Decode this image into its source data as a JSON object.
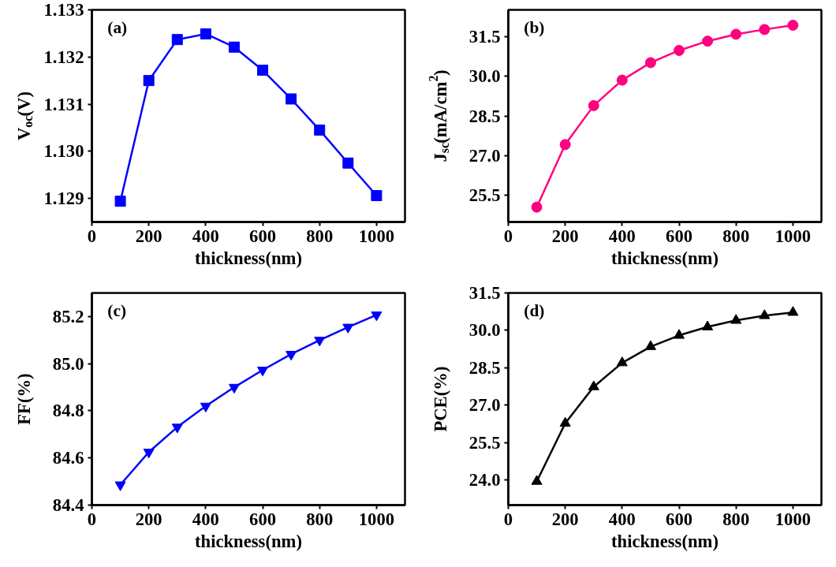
{
  "chart_data": [
    {
      "type": "line",
      "xlabel": "thickness(nm)",
      "ylabel": "V$_{oc}$(V)",
      "annotations": [
        "(a)"
      ],
      "marker": "square",
      "line_style": "solid",
      "grid": false,
      "x": [
        100,
        200,
        300,
        400,
        500,
        600,
        700,
        800,
        900,
        1000
      ],
      "series": [
        {
          "color": "#0000ff",
          "values": [
            1.12894,
            1.1315,
            1.13237,
            1.13249,
            1.13221,
            1.13172,
            1.13111,
            1.13045,
            1.12975,
            1.12906
          ]
        }
      ],
      "xlim": [
        0,
        1100
      ],
      "xticks": [
        0,
        200,
        400,
        600,
        800,
        1000
      ],
      "ylim": [
        1.1285,
        1.133
      ],
      "yticks": [
        {
          "value": 1.129,
          "label": "1.129"
        },
        {
          "value": 1.13,
          "label": "1.130"
        },
        {
          "value": 1.131,
          "label": "1.131"
        },
        {
          "value": 1.132,
          "label": "1.132"
        },
        {
          "value": 1.133,
          "label": "1.133"
        }
      ]
    },
    {
      "type": "line",
      "xlabel": "thickness(nm)",
      "ylabel": "J$_{sc}$(mA/cm$^{2}$)",
      "annotations": [
        "(b)"
      ],
      "marker": "circle",
      "line_style": "solid",
      "grid": false,
      "x": [
        100,
        200,
        300,
        400,
        500,
        600,
        700,
        800,
        900,
        1000
      ],
      "series": [
        {
          "color": "#ff0080",
          "values": [
            25.06,
            27.42,
            28.89,
            29.85,
            30.51,
            30.97,
            31.32,
            31.58,
            31.76,
            31.92
          ]
        }
      ],
      "xlim": [
        0,
        1100
      ],
      "xticks": [
        0,
        200,
        400,
        600,
        800,
        1000
      ],
      "ylim": [
        24.5,
        32.5
      ],
      "yticks": [
        {
          "value": 25.5,
          "label": "25.5"
        },
        {
          "value": 27,
          "label": "27.0"
        },
        {
          "value": 28.5,
          "label": "28.5"
        },
        {
          "value": 30,
          "label": "30.0"
        },
        {
          "value": 31.5,
          "label": "31.5"
        }
      ]
    },
    {
      "type": "line",
      "xlabel": "thickness(nm)",
      "ylabel": "FF(%)",
      "annotations": [
        "(c)"
      ],
      "marker": "triangle_down",
      "line_style": "solid",
      "grid": false,
      "x": [
        100,
        200,
        300,
        400,
        500,
        600,
        700,
        800,
        900,
        1000
      ],
      "series": [
        {
          "color": "#0000ff",
          "values": [
            84.486,
            84.625,
            84.731,
            84.82,
            84.9,
            84.973,
            85.04,
            85.1,
            85.155,
            85.207
          ]
        }
      ],
      "xlim": [
        0,
        1100
      ],
      "xticks": [
        0,
        200,
        400,
        600,
        800,
        1000
      ],
      "ylim": [
        84.4,
        85.3
      ],
      "yticks": [
        84.4,
        84.6,
        84.8,
        {
          "value": 85,
          "label": "85.0"
        },
        85.2
      ]
    },
    {
      "type": "line",
      "xlabel": "thickness(nm)",
      "ylabel": "PCE(%)",
      "annotations": [
        "(d)"
      ],
      "marker": "triangle",
      "line_style": "solid",
      "grid": false,
      "x": [
        100,
        200,
        300,
        400,
        500,
        600,
        700,
        800,
        900,
        1000
      ],
      "series": [
        {
          "color": "#000000",
          "values": [
            23.95,
            26.28,
            27.74,
            28.7,
            29.35,
            29.8,
            30.14,
            30.4,
            30.59,
            30.72
          ]
        }
      ],
      "xlim": [
        0,
        1100
      ],
      "xticks": [
        0,
        200,
        400,
        600,
        800,
        1000
      ],
      "ylim": [
        23,
        31.5
      ],
      "yticks": [
        {
          "value": 24,
          "label": "24.0"
        },
        25.5,
        {
          "value": 27,
          "label": "27.0"
        },
        28.5,
        {
          "value": 30,
          "label": "30.0"
        },
        31.5
      ]
    }
  ]
}
